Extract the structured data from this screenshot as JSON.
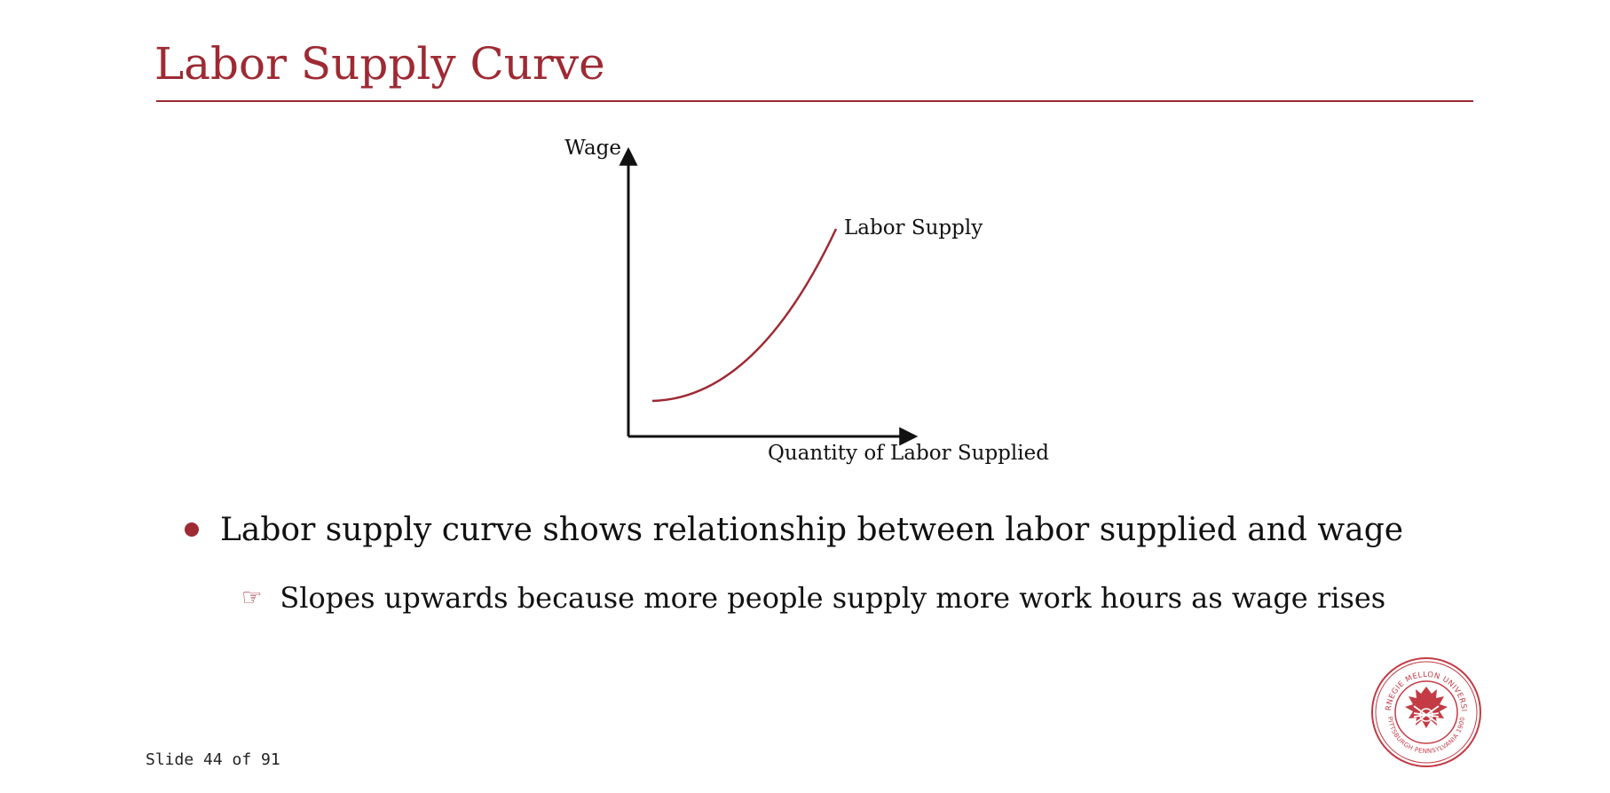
{
  "slide": {
    "title": "Labor Supply Curve",
    "counter": "Slide 44 of 91"
  },
  "diagram": {
    "y_axis_label": "Wage",
    "x_axis_label": "Quantity of Labor Supplied",
    "curve_label": "Labor Supply"
  },
  "bullets": {
    "main": "Labor supply curve shows relationship between labor supplied and wage",
    "sub": "Slopes upwards because more people supply more work hours as wage rises"
  },
  "logo": {
    "top_text": "CARNEGIE MELLON UNIVERSITY",
    "bottom_text": "PITTSBURGH PENNSYLVANIA 1900"
  },
  "colors": {
    "accent": "#9e2a33",
    "text": "#111111"
  }
}
